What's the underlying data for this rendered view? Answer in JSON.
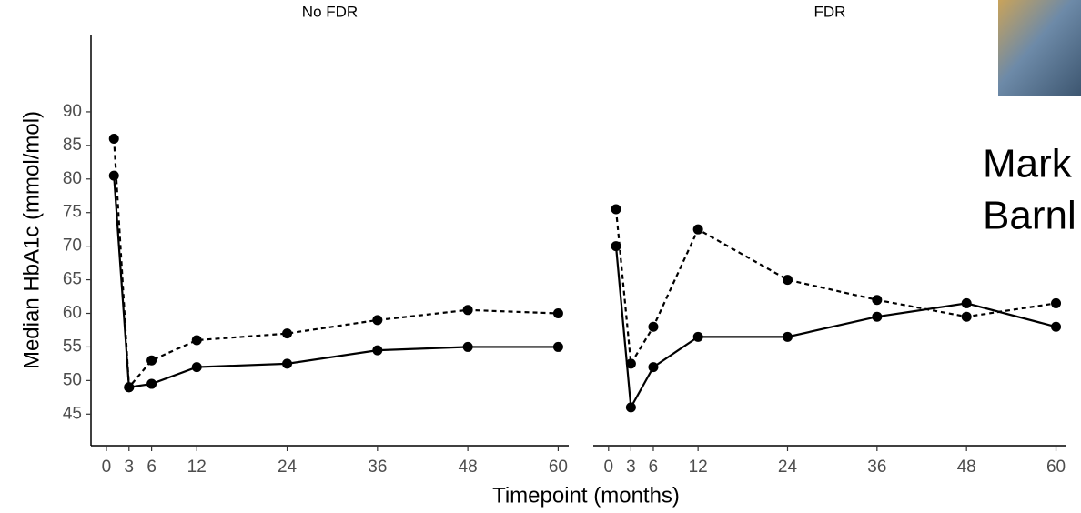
{
  "chart_data": {
    "type": "line",
    "ylabel": "Median HbA1c (mmol/mol)",
    "xlabel": "Timepoint (months)",
    "ylim": [
      40.3,
      101.5
    ],
    "yticks": [
      45,
      50,
      55,
      60,
      65,
      70,
      75,
      80,
      85,
      90
    ],
    "panels": [
      {
        "title": "No FDR",
        "x": [
          1,
          3,
          6,
          12,
          24,
          36,
          48,
          60
        ],
        "xlim": [
          -2.05,
          61.4
        ],
        "xticks": [
          0,
          3,
          6,
          12,
          24,
          36,
          48,
          60
        ],
        "series": [
          {
            "color": "#000000",
            "linestyle": "dashed",
            "values": [
              86,
              49,
              53,
              56,
              57,
              59,
              60.5,
              60
            ]
          },
          {
            "color": "#000000",
            "linestyle": "solid",
            "values": [
              80.5,
              49,
              49.5,
              52,
              52.5,
              54.5,
              55,
              55
            ]
          }
        ]
      },
      {
        "title": "FDR",
        "x": [
          1,
          3,
          6,
          12,
          24,
          36,
          48,
          60
        ],
        "xlim": [
          -2.05,
          61.4
        ],
        "xticks": [
          0,
          3,
          6,
          12,
          24,
          36,
          48,
          60
        ],
        "series": [
          {
            "color": "#000000",
            "linestyle": "dashed",
            "values": [
              75.5,
              52.5,
              58,
              72.5,
              65,
              62,
              59.5,
              61.5
            ]
          },
          {
            "color": "#000000",
            "linestyle": "solid",
            "values": [
              70,
              46,
              52,
              56.5,
              56.5,
              59.5,
              61.5,
              58
            ]
          }
        ]
      }
    ]
  },
  "overlay": {
    "name_lines": [
      "Mark",
      "Barnl"
    ]
  }
}
